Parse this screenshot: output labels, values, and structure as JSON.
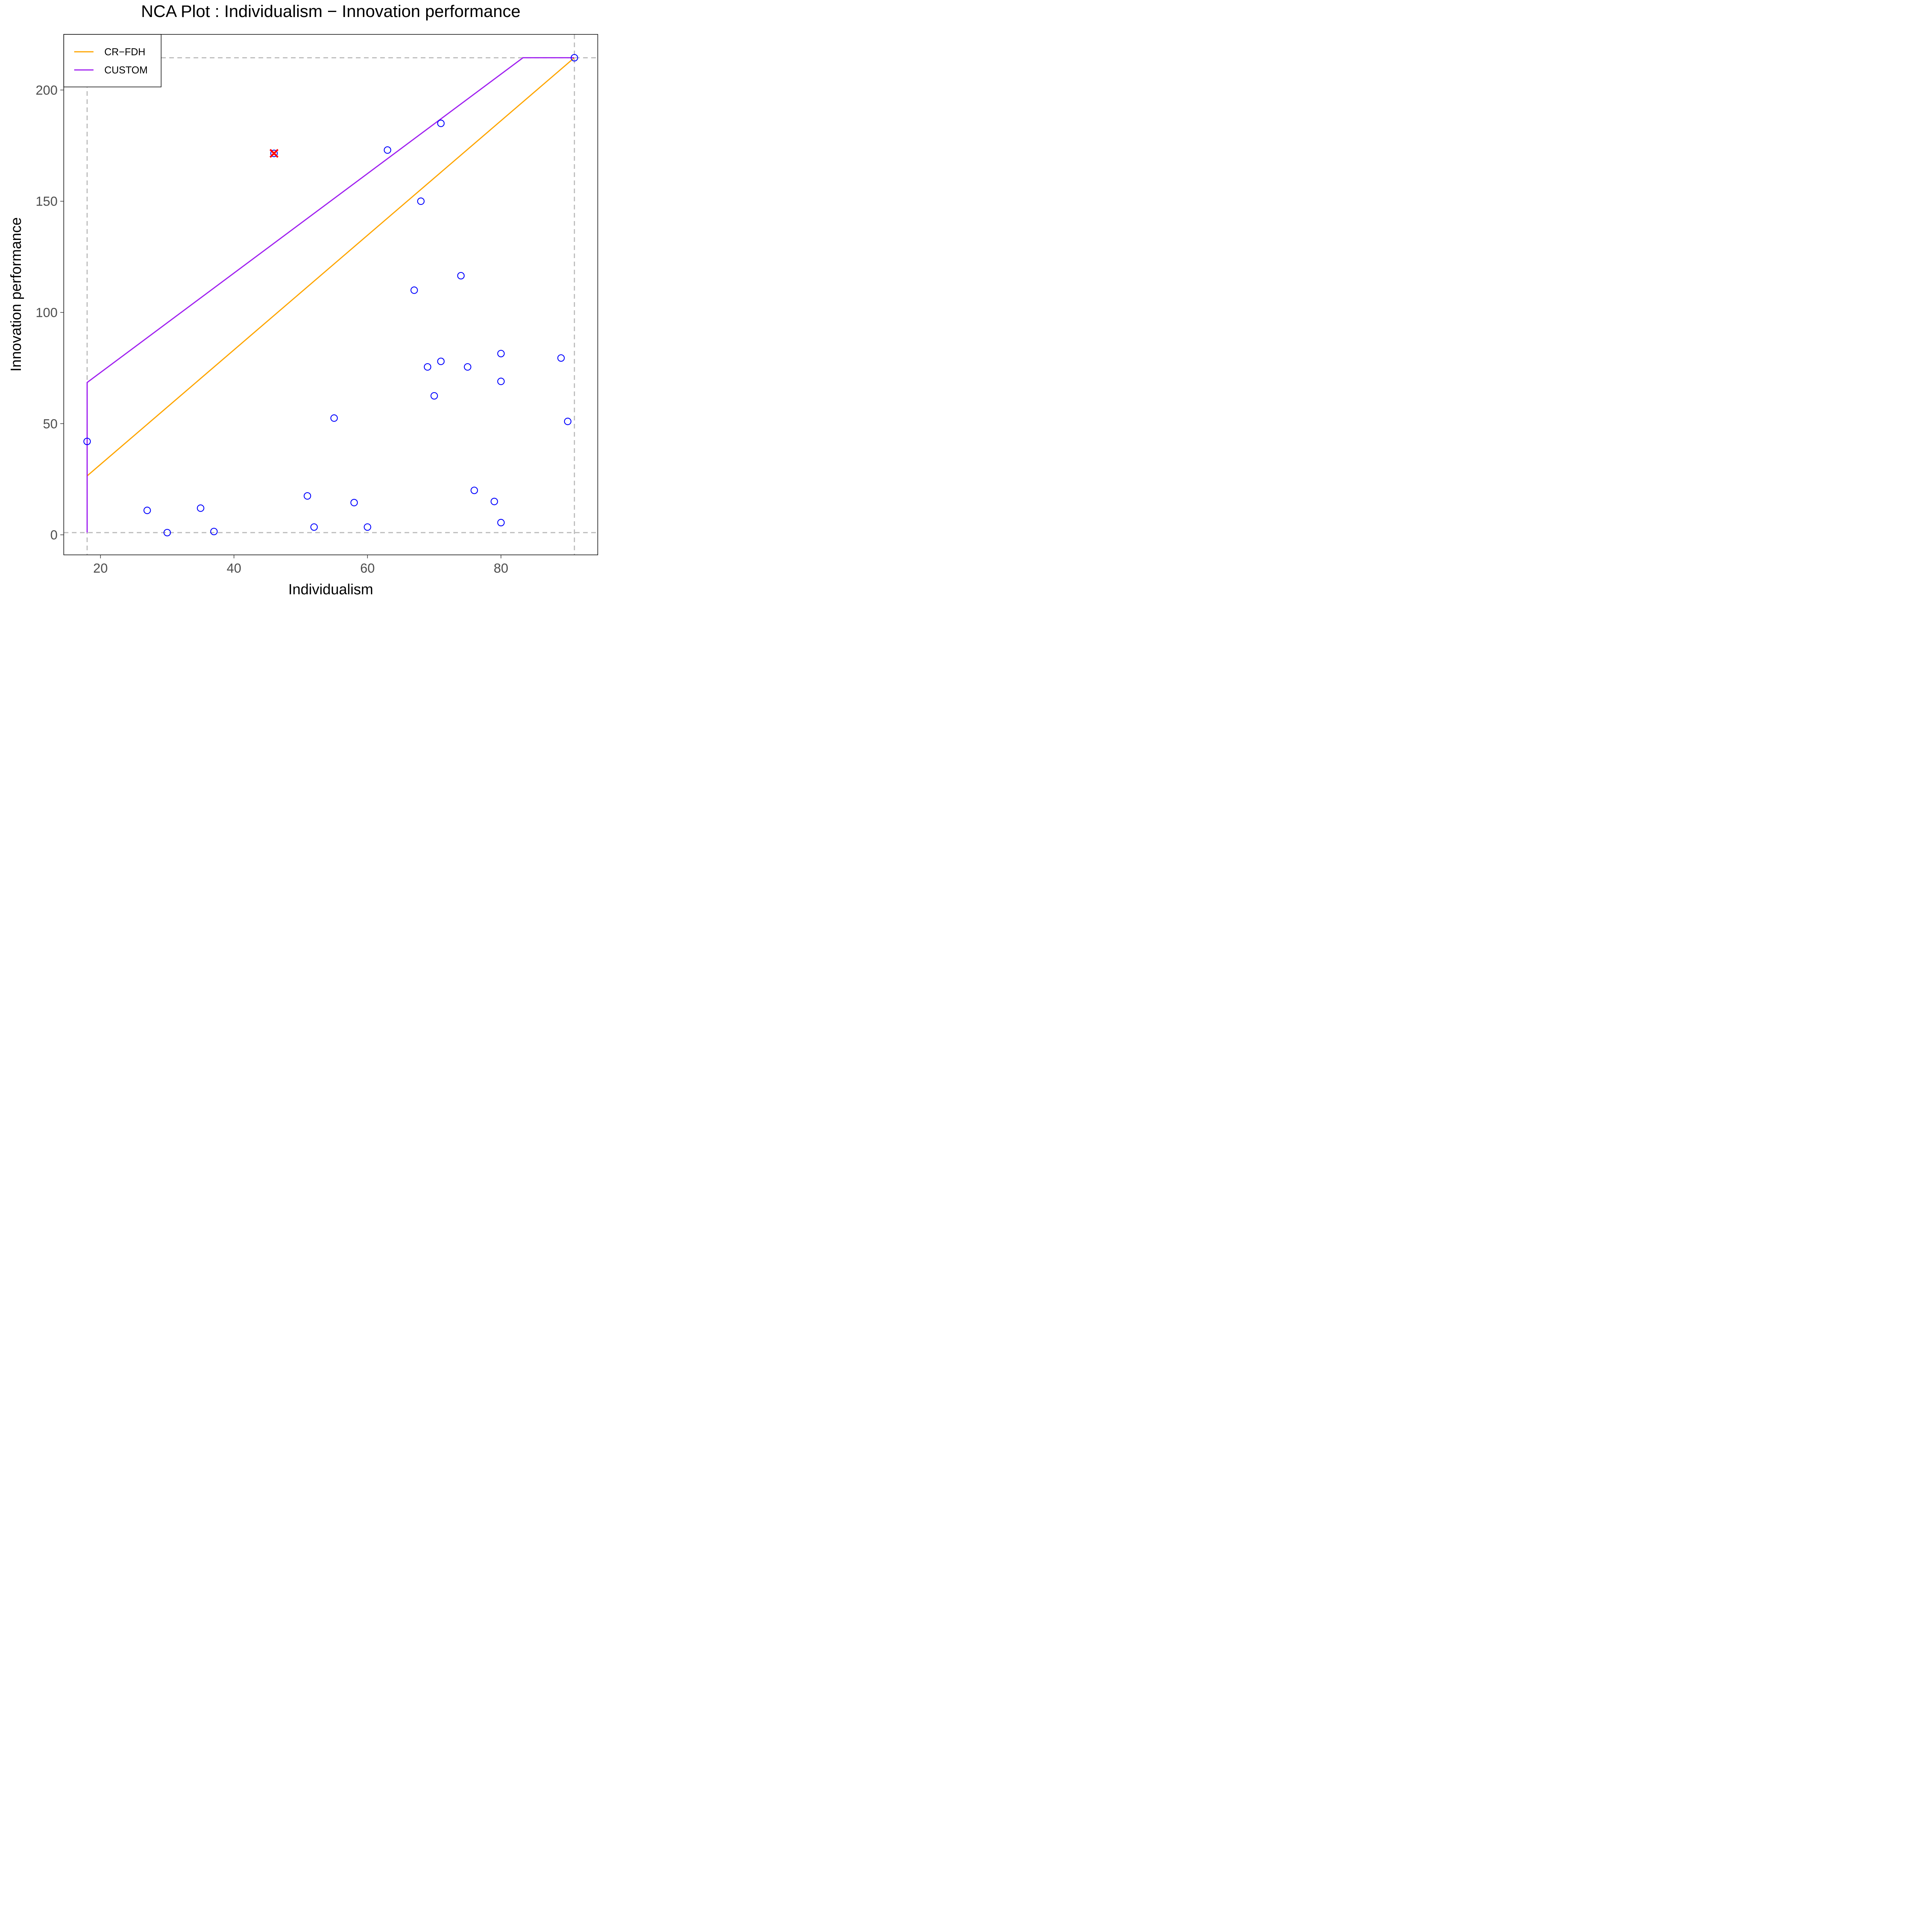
{
  "chart_data": {
    "type": "scatter",
    "title": "NCA Plot : Individualism − Innovation performance",
    "xlabel": "Individualism",
    "ylabel": "Innovation performance",
    "xlim": [
      14.5,
      94.5
    ],
    "ylim": [
      -9,
      225
    ],
    "x_ticks": [
      {
        "value": 20,
        "label": "20"
      },
      {
        "value": 40,
        "label": "40"
      },
      {
        "value": 60,
        "label": "60"
      },
      {
        "value": 80,
        "label": "80"
      }
    ],
    "y_ticks": [
      {
        "value": 0,
        "label": "0"
      },
      {
        "value": 50,
        "label": "50"
      },
      {
        "value": 100,
        "label": "100"
      },
      {
        "value": 150,
        "label": "150"
      },
      {
        "value": 200,
        "label": "200"
      }
    ],
    "points": [
      {
        "x": 18,
        "y": 42
      },
      {
        "x": 27,
        "y": 11
      },
      {
        "x": 30,
        "y": 1
      },
      {
        "x": 35,
        "y": 12
      },
      {
        "x": 37,
        "y": 1.5
      },
      {
        "x": 46,
        "y": 171.5
      },
      {
        "x": 51,
        "y": 17.5
      },
      {
        "x": 52,
        "y": 3.5
      },
      {
        "x": 55,
        "y": 52.5
      },
      {
        "x": 58,
        "y": 14.5
      },
      {
        "x": 60,
        "y": 3.5
      },
      {
        "x": 63,
        "y": 173
      },
      {
        "x": 67,
        "y": 110
      },
      {
        "x": 68,
        "y": 150
      },
      {
        "x": 69,
        "y": 75.5
      },
      {
        "x": 70,
        "y": 62.5
      },
      {
        "x": 71,
        "y": 185
      },
      {
        "x": 71,
        "y": 78
      },
      {
        "x": 74,
        "y": 116.5
      },
      {
        "x": 75,
        "y": 75.5
      },
      {
        "x": 76,
        "y": 20
      },
      {
        "x": 79,
        "y": 15
      },
      {
        "x": 80,
        "y": 81.5
      },
      {
        "x": 80,
        "y": 69
      },
      {
        "x": 80,
        "y": 5.5
      },
      {
        "x": 89,
        "y": 79.5
      },
      {
        "x": 90,
        "y": 51
      },
      {
        "x": 91,
        "y": 214.5
      }
    ],
    "excluded_point": {
      "x": 46,
      "y": 171.5,
      "marker": "x",
      "color": "#ff0000"
    },
    "point_color": "#0000ff",
    "reference_lines": {
      "color": "#bebebe",
      "style": "dashed",
      "vertical": [
        18,
        91
      ],
      "horizontal": [
        1,
        214.5
      ]
    },
    "series": [
      {
        "name": "CR−FDH",
        "color": "#ffa500",
        "points": [
          [
            18,
            26.5
          ],
          [
            91,
            214.5
          ]
        ]
      },
      {
        "name": "CUSTOM",
        "color": "#a020f0",
        "points": [
          [
            18,
            1
          ],
          [
            18,
            68.5
          ],
          [
            83.3,
            214.5
          ],
          [
            91,
            214.5
          ]
        ]
      }
    ],
    "legend": {
      "placement": "top-left",
      "entries": [
        "CR−FDH",
        "CUSTOM"
      ]
    },
    "grid": false
  }
}
